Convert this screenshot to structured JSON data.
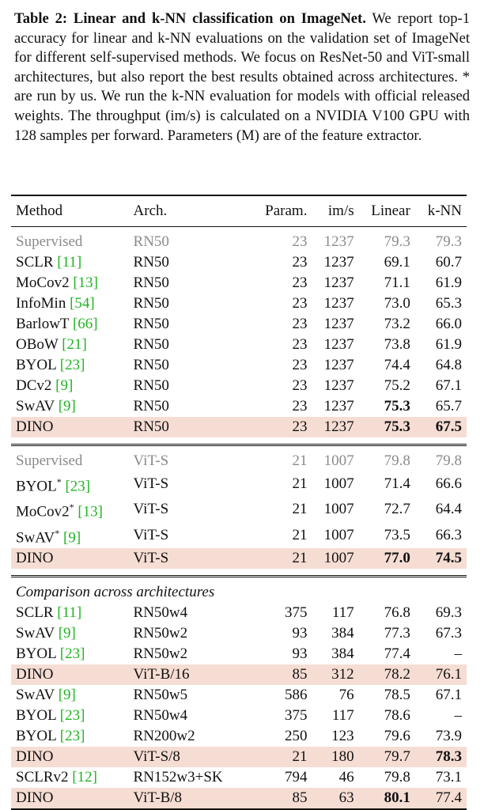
{
  "caption": {
    "label": "Table 2:",
    "title": "Linear and k-NN classification on ImageNet.",
    "body": "We report top-1 accuracy for linear and k-NN evaluations on the validation set of ImageNet for different self-supervised methods. We focus on ResNet-50 and ViT-small architectures, but also report the best results obtained across architectures. * are run by us. We run the k-NN evaluation for models with official released weights. The throughput (im/s) is calculated on a NVIDIA V100 GPU with 128 samples per forward. Parameters (M) are of the feature extractor."
  },
  "columns": [
    "Method",
    "Arch.",
    "Param.",
    "im/s",
    "Linear",
    "k-NN"
  ],
  "sections": [
    {
      "rows": [
        {
          "method": "Supervised",
          "cite": "",
          "star": "",
          "arch": "RN50",
          "param": "23",
          "ims": "1237",
          "linear": "79.3",
          "knn": "79.3",
          "gray": true
        },
        {
          "method": "SCLR",
          "cite": "[11]",
          "star": "",
          "arch": "RN50",
          "param": "23",
          "ims": "1237",
          "linear": "69.1",
          "knn": "60.7"
        },
        {
          "method": "MoCov2",
          "cite": "[13]",
          "star": "",
          "arch": "RN50",
          "param": "23",
          "ims": "1237",
          "linear": "71.1",
          "knn": "61.9"
        },
        {
          "method": "InfoMin",
          "cite": "[54]",
          "star": "",
          "arch": "RN50",
          "param": "23",
          "ims": "1237",
          "linear": "73.0",
          "knn": "65.3"
        },
        {
          "method": "BarlowT",
          "cite": "[66]",
          "star": "",
          "arch": "RN50",
          "param": "23",
          "ims": "1237",
          "linear": "73.2",
          "knn": "66.0"
        },
        {
          "method": "OBoW",
          "cite": "[21]",
          "star": "",
          "arch": "RN50",
          "param": "23",
          "ims": "1237",
          "linear": "73.8",
          "knn": "61.9"
        },
        {
          "method": "BYOL",
          "cite": "[23]",
          "star": "",
          "arch": "RN50",
          "param": "23",
          "ims": "1237",
          "linear": "74.4",
          "knn": "64.8"
        },
        {
          "method": "DCv2",
          "cite": "[9]",
          "star": "",
          "arch": "RN50",
          "param": "23",
          "ims": "1237",
          "linear": "75.2",
          "knn": "67.1"
        },
        {
          "method": "SwAV",
          "cite": "[9]",
          "star": "",
          "arch": "RN50",
          "param": "23",
          "ims": "1237",
          "linear": "75.3",
          "knn": "65.7",
          "bold_linear": true
        },
        {
          "method": "DINO",
          "cite": "",
          "star": "",
          "arch": "RN50",
          "param": "23",
          "ims": "1237",
          "linear": "75.3",
          "knn": "67.5",
          "highlight": true,
          "bold_linear": true,
          "bold_knn": true
        }
      ]
    },
    {
      "rows": [
        {
          "method": "Supervised",
          "cite": "",
          "star": "",
          "arch": "ViT-S",
          "param": "21",
          "ims": "1007",
          "linear": "79.8",
          "knn": "79.8",
          "gray": true
        },
        {
          "method": "BYOL",
          "cite": "[23]",
          "star": "*",
          "arch": "ViT-S",
          "param": "21",
          "ims": "1007",
          "linear": "71.4",
          "knn": "66.6"
        },
        {
          "method": "MoCov2",
          "cite": "[13]",
          "star": "*",
          "arch": "ViT-S",
          "param": "21",
          "ims": "1007",
          "linear": "72.7",
          "knn": "64.4"
        },
        {
          "method": "SwAV",
          "cite": "[9]",
          "star": "*",
          "arch": "ViT-S",
          "param": "21",
          "ims": "1007",
          "linear": "73.5",
          "knn": "66.3"
        },
        {
          "method": "DINO",
          "cite": "",
          "star": "",
          "arch": "ViT-S",
          "param": "21",
          "ims": "1007",
          "linear": "77.0",
          "knn": "74.5",
          "highlight": true,
          "bold_linear": true,
          "bold_knn": true
        }
      ]
    },
    {
      "title": "Comparison across architectures",
      "rows": [
        {
          "method": "SCLR",
          "cite": "[11]",
          "star": "",
          "arch": "RN50w4",
          "param": "375",
          "ims": "117",
          "linear": "76.8",
          "knn": "69.3"
        },
        {
          "method": "SwAV",
          "cite": "[9]",
          "star": "",
          "arch": "RN50w2",
          "param": "93",
          "ims": "384",
          "linear": "77.3",
          "knn": "67.3"
        },
        {
          "method": "BYOL",
          "cite": "[23]",
          "star": "",
          "arch": "RN50w2",
          "param": "93",
          "ims": "384",
          "linear": "77.4",
          "knn": "–"
        },
        {
          "method": "DINO",
          "cite": "",
          "star": "",
          "arch": "ViT-B/16",
          "param": "85",
          "ims": "312",
          "linear": "78.2",
          "knn": "76.1",
          "highlight": true
        },
        {
          "method": "SwAV",
          "cite": "[9]",
          "star": "",
          "arch": "RN50w5",
          "param": "586",
          "ims": "76",
          "linear": "78.5",
          "knn": "67.1"
        },
        {
          "method": "BYOL",
          "cite": "[23]",
          "star": "",
          "arch": "RN50w4",
          "param": "375",
          "ims": "117",
          "linear": "78.6",
          "knn": "–"
        },
        {
          "method": "BYOL",
          "cite": "[23]",
          "star": "",
          "arch": "RN200w2",
          "param": "250",
          "ims": "123",
          "linear": "79.6",
          "knn": "73.9"
        },
        {
          "method": "DINO",
          "cite": "",
          "star": "",
          "arch": "ViT-S/8",
          "param": "21",
          "ims": "180",
          "linear": "79.7",
          "knn": "78.3",
          "highlight": true,
          "bold_knn": true
        },
        {
          "method": "SCLRv2",
          "cite": "[12]",
          "star": "",
          "arch": "RN152w3+SK",
          "param": "794",
          "ims": "46",
          "linear": "79.8",
          "knn": "73.1"
        },
        {
          "method": "DINO",
          "cite": "",
          "star": "",
          "arch": "ViT-B/8",
          "param": "85",
          "ims": "63",
          "linear": "80.1",
          "knn": "77.4",
          "highlight": true,
          "bold_linear": true
        }
      ]
    }
  ]
}
